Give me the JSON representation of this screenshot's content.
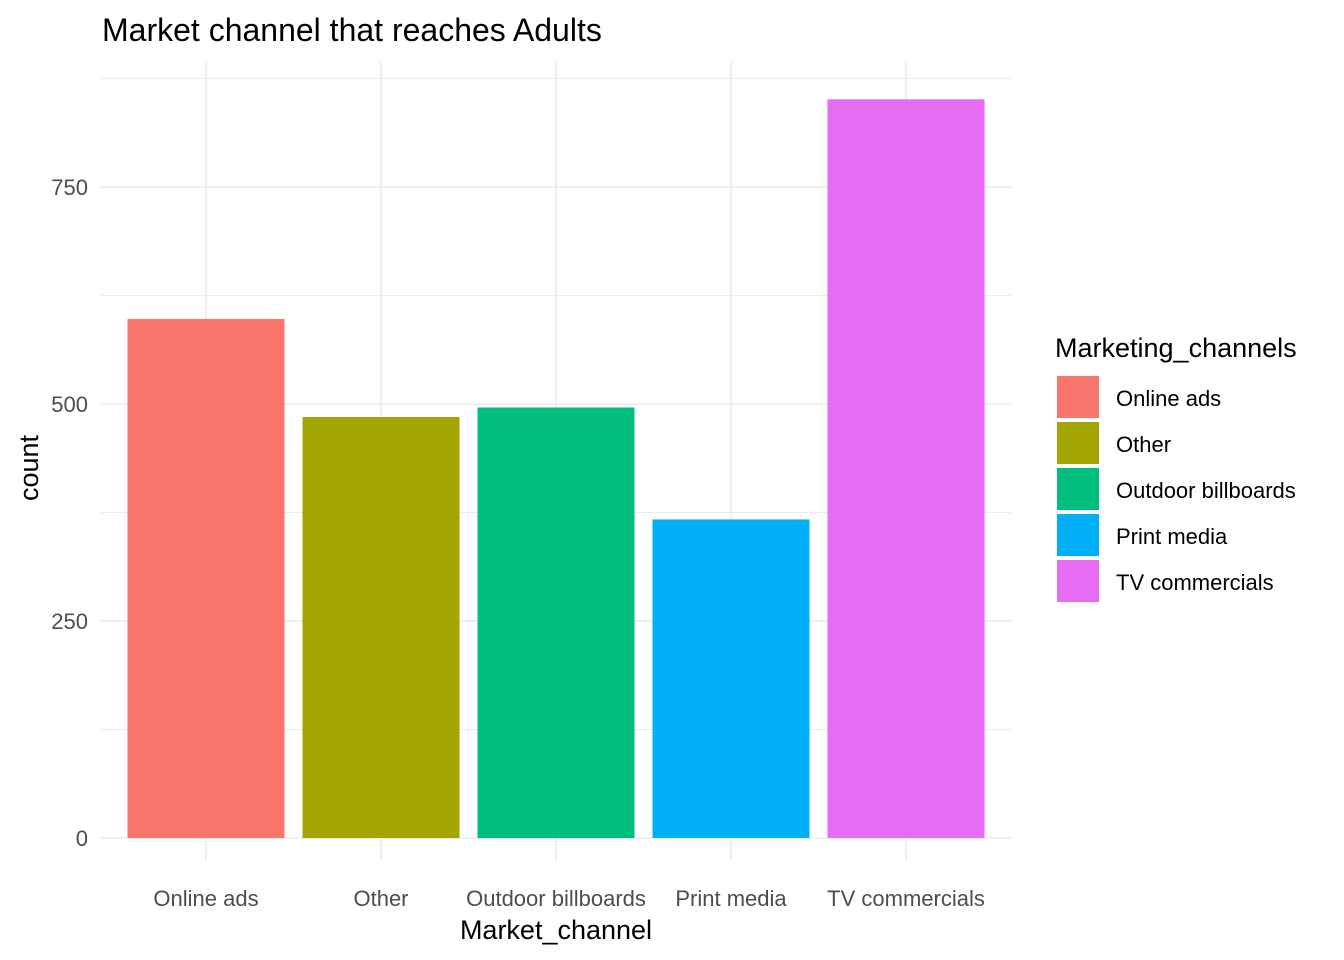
{
  "chart_data": {
    "type": "bar",
    "title": "Market channel that reaches Adults",
    "xlabel": "Market_channel",
    "ylabel": "count",
    "categories": [
      "Online ads",
      "Other",
      "Outdoor billboards",
      "Print media",
      "TV commercials"
    ],
    "values": [
      598,
      485,
      496,
      367,
      851
    ],
    "colors": [
      "#F8766D",
      "#A3A500",
      "#00BF7D",
      "#00B0F6",
      "#E76BF3"
    ],
    "ylim": [
      0,
      900
    ],
    "yticks": [
      0,
      250,
      500,
      750
    ],
    "grid": true,
    "legend": {
      "title": "Marketing_channels",
      "position": "right",
      "entries": [
        "Online ads",
        "Other",
        "Outdoor billboards",
        "Print media",
        "TV commercials"
      ]
    }
  }
}
